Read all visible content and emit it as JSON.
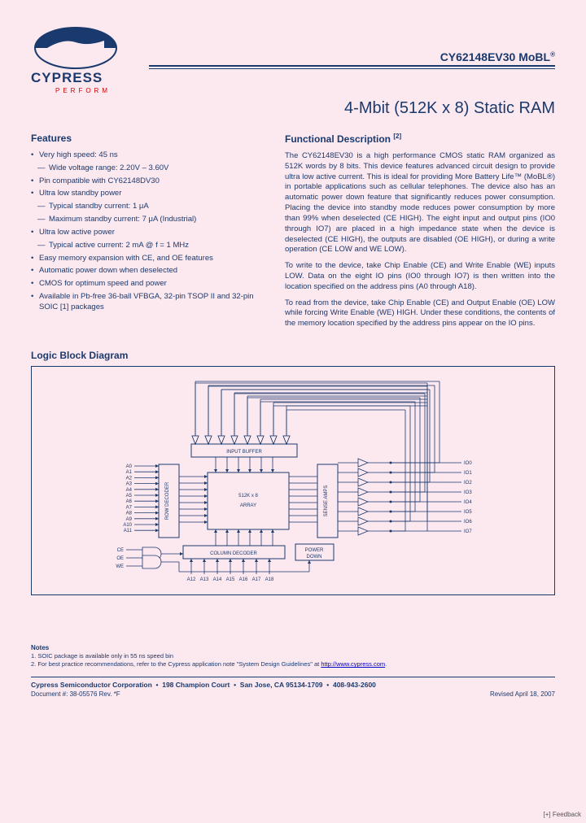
{
  "logo": {
    "brand": "CYPRESS",
    "tagline": "PERFORM"
  },
  "part_number": "CY62148EV30 MoBL",
  "reg_mark": "®",
  "main_title": "4-Mbit (512K x 8) Static RAM",
  "features": {
    "heading": "Features",
    "items": [
      {
        "t": "top",
        "text": "Very high speed: 45 ns"
      },
      {
        "t": "sub",
        "text": "Wide voltage range: 2.20V – 3.60V"
      },
      {
        "t": "top",
        "text": "Pin compatible with CY62148DV30"
      },
      {
        "t": "top",
        "text": "Ultra low standby power"
      },
      {
        "t": "sub",
        "text": "Typical standby current: 1 μA"
      },
      {
        "t": "sub",
        "text": "Maximum standby current: 7 μA (Industrial)"
      },
      {
        "t": "top",
        "text": "Ultra low active power"
      },
      {
        "t": "sub",
        "text": "Typical active current: 2 mA @ f = 1 MHz"
      },
      {
        "t": "top",
        "text": "Easy memory expansion with CE, and OE features"
      },
      {
        "t": "top",
        "text": "Automatic power down when deselected"
      },
      {
        "t": "top",
        "text": "CMOS for optimum speed and power"
      },
      {
        "t": "top",
        "text": "Available in Pb-free 36-ball VFBGA, 32-pin TSOP II and 32-pin SOIC [1] packages"
      }
    ]
  },
  "description": {
    "heading": "Functional Description",
    "ref": "[2]",
    "paragraphs": [
      "The CY62148EV30 is a high performance CMOS static RAM organized as 512K words by 8 bits. This device features advanced circuit design to provide ultra low active current. This is ideal for providing More Battery Life™ (MoBL®) in portable applications such as cellular telephones. The device also has an automatic power down feature that significantly reduces power consumption. Placing the device into standby mode reduces power consumption by more than 99% when deselected (CE HIGH). The eight input and output pins (IO0 through IO7) are placed in a high impedance state when the device is deselected (CE HIGH), the outputs are disabled (OE HIGH), or during a write operation (CE LOW and WE LOW).",
      "To write to the device, take Chip Enable (CE) and Write Enable (WE) inputs LOW. Data on the eight IO pins (IO0 through IO7) is then written into the location specified on the address pins (A0 through A18).",
      "To read from the device, take Chip Enable (CE) and Output Enable (OE) LOW while forcing Write Enable (WE) HIGH. Under these conditions, the contents of the memory location specified by the address pins appear on the IO pins."
    ]
  },
  "diagram": {
    "heading": "Logic Block Diagram",
    "blocks": {
      "input_buffer": "INPUT BUFFER",
      "row_decoder": "ROW DECODER",
      "array": "512K x 8\nARRAY",
      "sense_amps": "SENSE AMPS",
      "column_decoder": "COLUMN DECODER",
      "power_down": "POWER\nDOWN"
    },
    "left_addr": [
      "A0",
      "A1",
      "A2",
      "A3",
      "A4",
      "A5",
      "A6",
      "A7",
      "A8",
      "A9",
      "A10",
      "A11"
    ],
    "bottom_addr": [
      "A12",
      "A13",
      "A14",
      "A15",
      "A16",
      "A17",
      "A18"
    ],
    "ctrl": [
      "CE",
      "OE",
      "WE"
    ],
    "io": [
      "IO0",
      "IO1",
      "IO2",
      "IO3",
      "IO4",
      "IO5",
      "IO6",
      "IO7"
    ],
    "colors": {
      "line": "#1a3a6e",
      "bg": "#fce8ef"
    }
  },
  "notes": {
    "heading": "Notes",
    "items": [
      "1.  SOIC package is available only in 55 ns speed bin",
      "2.  For best practice recommendations, refer to the Cypress application note \"System Design Guidelines\" at"
    ],
    "link": "http://www.cypress.com"
  },
  "footer": {
    "company": "Cypress Semiconductor Corporation",
    "address": "198 Champion Court",
    "city": "San Jose, CA  95134-1709",
    "phone": "408-943-2600",
    "doc": "Document #: 38-05576 Rev. *F",
    "revised": "Revised April 18, 2007"
  },
  "feedback": "[+] Feedback"
}
